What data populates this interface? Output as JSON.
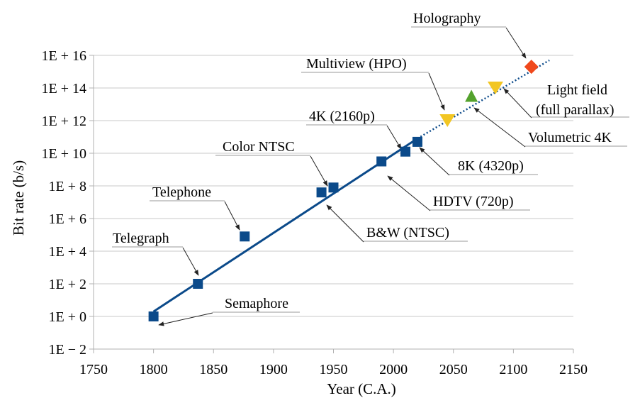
{
  "chart_data": {
    "type": "scatter",
    "xlabel": "Year (C.A.)",
    "ylabel": "Bit rate (b/s)",
    "xlim": [
      1750,
      2150
    ],
    "ylim_log10": [
      -2,
      16
    ],
    "y_scale": "log",
    "grid": "horizontal",
    "legend": "none",
    "x_ticks": [
      "1750",
      "1800",
      "1850",
      "1900",
      "1950",
      "2000",
      "2050",
      "2100",
      "2150"
    ],
    "y_ticks": [
      "1E − 2",
      "1E + 0",
      "1E + 2",
      "1E + 4",
      "1E + 6",
      "1E + 8",
      "1E + 10",
      "1E + 12",
      "1E + 14",
      "1E + 16"
    ],
    "points": [
      {
        "label": "Semaphore",
        "x": 1800,
        "log10_y": 0.0,
        "marker": "square",
        "color": "#0b4a8a"
      },
      {
        "label": "Telegraph",
        "x": 1837,
        "log10_y": 2.0,
        "marker": "square",
        "color": "#0b4a8a"
      },
      {
        "label": "Telephone",
        "x": 1876,
        "log10_y": 4.9,
        "marker": "square",
        "color": "#0b4a8a"
      },
      {
        "label": "B&W (NTSC)",
        "x": 1940,
        "log10_y": 7.6,
        "marker": "square",
        "color": "#0b4a8a"
      },
      {
        "label": "Color NTSC",
        "x": 1950,
        "log10_y": 7.9,
        "marker": "square",
        "color": "#0b4a8a"
      },
      {
        "label": "HDTV (720p)",
        "x": 1990,
        "log10_y": 9.5,
        "marker": "square",
        "color": "#0b4a8a"
      },
      {
        "label": "4K (2160p)",
        "x": 2010,
        "log10_y": 10.1,
        "marker": "square",
        "color": "#0b4a8a"
      },
      {
        "label": "8K (4320p)",
        "x": 2020,
        "log10_y": 10.7,
        "marker": "square",
        "color": "#0b4a8a"
      },
      {
        "label": "Multiview (HPO)",
        "x": 2045,
        "log10_y": 12.0,
        "marker": "triangle-down",
        "color": "#f2c623"
      },
      {
        "label": "Volumetric 4K",
        "x": 2065,
        "log10_y": 13.5,
        "marker": "triangle-up",
        "color": "#54a22d"
      },
      {
        "label": "Light field\n(full parallax)",
        "x": 2085,
        "log10_y": 14.0,
        "marker": "triangle-down",
        "color": "#f2c623"
      },
      {
        "label": "Holography",
        "x": 2115,
        "log10_y": 15.3,
        "marker": "diamond",
        "color": "#f0481c"
      }
    ],
    "trend": {
      "solid": {
        "from": [
          1800,
          0.3
        ],
        "to": [
          2020,
          10.9
        ]
      },
      "dotted": {
        "from": [
          2020,
          10.9
        ],
        "to": [
          2130,
          15.7
        ]
      },
      "color": "#0b4a8a"
    }
  }
}
